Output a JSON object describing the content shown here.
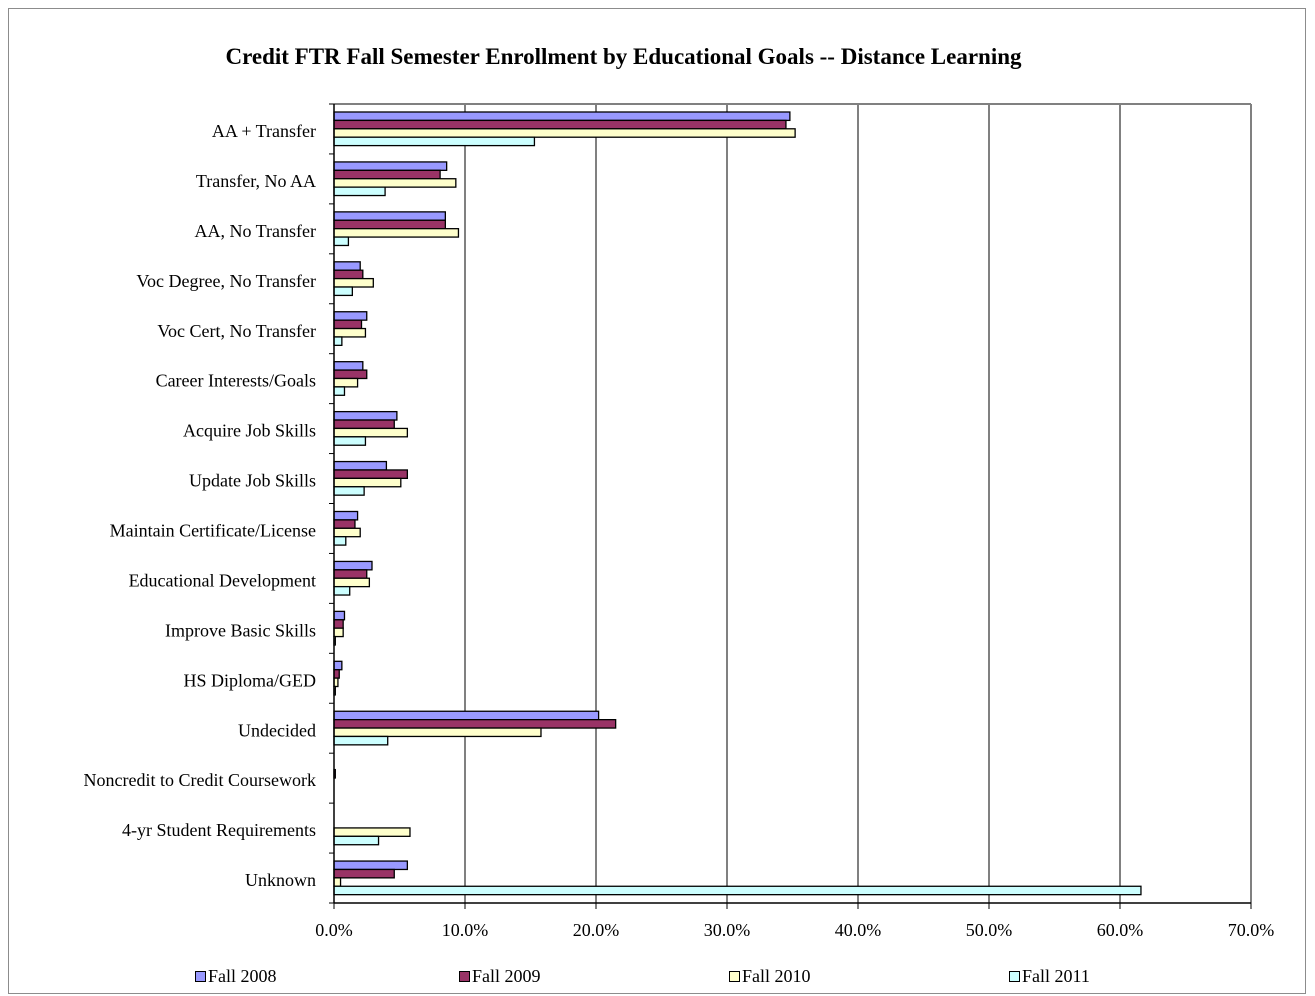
{
  "chart_data": {
    "type": "bar",
    "orientation": "horizontal",
    "title": "Credit FTR Fall Semester Enrollment by Educational Goals -- Distance Learning",
    "categories": [
      "AA + Transfer",
      "Transfer, No AA",
      "AA, No Transfer",
      "Voc Degree, No Transfer",
      "Voc Cert, No Transfer",
      "Career Interests/Goals",
      "Acquire Job Skills",
      "Update Job Skills",
      "Maintain Certificate/License",
      "Educational Development",
      "Improve Basic Skills",
      "HS Diploma/GED",
      "Undecided",
      "Noncredit to Credit Coursework",
      "4-yr Student Requirements",
      "Unknown"
    ],
    "series": [
      {
        "name": "Fall 2008",
        "color": "#9999ff",
        "values": [
          34.8,
          8.6,
          8.5,
          2.0,
          2.5,
          2.2,
          4.8,
          4.0,
          1.8,
          2.9,
          0.8,
          0.6,
          20.2,
          0.0,
          0.0,
          5.6
        ]
      },
      {
        "name": "Fall 2009",
        "color": "#993366",
        "values": [
          34.5,
          8.1,
          8.5,
          2.2,
          2.1,
          2.5,
          4.6,
          5.6,
          1.6,
          2.5,
          0.7,
          0.4,
          21.5,
          0.1,
          0.0,
          4.6
        ]
      },
      {
        "name": "Fall 2010",
        "color": "#ffffcc",
        "values": [
          35.2,
          9.3,
          9.5,
          3.0,
          2.4,
          1.8,
          5.6,
          5.1,
          2.0,
          2.7,
          0.7,
          0.3,
          15.8,
          0.0,
          5.8,
          0.5
        ]
      },
      {
        "name": "Fall 2011",
        "color": "#ccffff",
        "values": [
          15.3,
          3.9,
          1.1,
          1.4,
          0.6,
          0.8,
          2.4,
          2.3,
          0.9,
          1.2,
          0.1,
          0.1,
          4.1,
          0.0,
          3.4,
          61.6
        ]
      }
    ],
    "x_ticks": [
      "0.0%",
      "10.0%",
      "20.0%",
      "30.0%",
      "40.0%",
      "50.0%",
      "60.0%",
      "70.0%"
    ],
    "xlim": [
      0,
      70
    ],
    "grid": "vertical major gridlines",
    "legend_position": "bottom"
  }
}
